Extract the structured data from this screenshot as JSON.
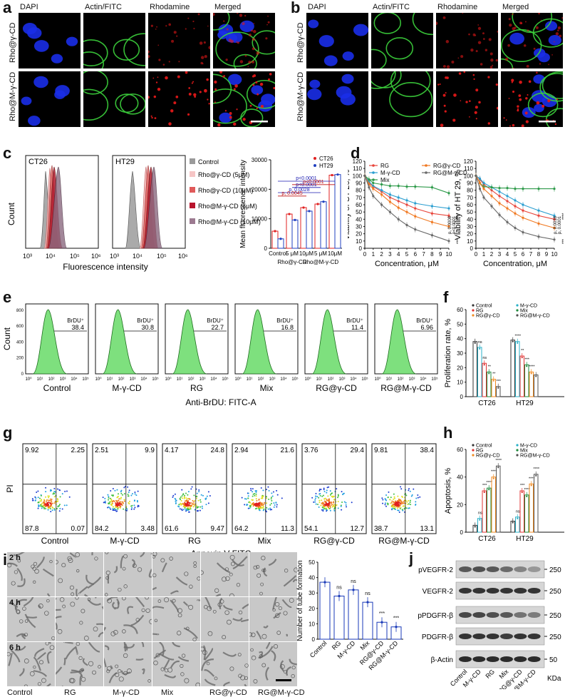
{
  "panels": {
    "a": "a",
    "b": "b",
    "c": "c",
    "d": "d",
    "e": "e",
    "f": "f",
    "g": "g",
    "h": "h",
    "i": "i",
    "j": "j"
  },
  "microscopy": {
    "channels": [
      "DAPI",
      "Actin/FITC",
      "Rhodamine",
      "Merged"
    ],
    "rows": [
      "Rho@γ-CD",
      "Rho@M-γ-CD"
    ]
  },
  "panel_c": {
    "hist_labels": [
      "CT26",
      "HT29"
    ],
    "hist_ylabel": "Count",
    "hist_xlabel": "Fluorescence intensity",
    "hist_ticks": [
      "10³",
      "10⁴",
      "10⁵",
      "10⁶"
    ],
    "legend": [
      "Control",
      "Rho@γ-CD (5μM)",
      "Rho@γ-CD (10μM)",
      "Rho@M-γ-CD (5μM)",
      "Rho@M-γ-CD (10μM)"
    ],
    "legend_colors": [
      "#9a9a9a",
      "#f6c6c6",
      "#e05a5a",
      "#b8142c",
      "#9c7a90"
    ]
  },
  "chart_data": [
    {
      "type": "bar",
      "panel": "c",
      "ylabel": "Mean fluorescence intensity",
      "categories": [
        "Control",
        "5 μM",
        "10μM",
        "5 μM",
        "10μM"
      ],
      "groups": [
        "Rho@γ-CD",
        "Rho@M-γ-CD"
      ],
      "series": [
        {
          "name": "CT26",
          "values": [
            5800,
            11600,
            13800,
            15000,
            24800
          ]
        },
        {
          "name": "HT29",
          "values": [
            3200,
            9600,
            12600,
            15800,
            25000
          ]
        }
      ],
      "yticks": [
        "0",
        "10000",
        "20000",
        "30000"
      ],
      "ylim": [
        0,
        30000
      ],
      "annotations": [
        "p<0.0001",
        "p<0.0001",
        "p<0.0001",
        "p, 0.0028",
        "p, 0.0045",
        "****",
        "****",
        "**",
        "**"
      ]
    },
    {
      "type": "line",
      "panel": "d",
      "ylabel": "Viability of CT 26, %",
      "xlabel": "Concentration, μM",
      "x": [
        0,
        0.5,
        1,
        2,
        3,
        4,
        5,
        6,
        8,
        10
      ],
      "xticks": [
        "0",
        "1",
        "2",
        "3",
        "4",
        "5",
        "6",
        "7",
        "8",
        "9",
        "10"
      ],
      "yticks": [
        "0",
        "10",
        "20",
        "30",
        "40",
        "50",
        "60",
        "70",
        "80",
        "90",
        "100",
        "110",
        "120"
      ],
      "ylim": [
        0,
        120
      ],
      "series": [
        {
          "name": "RG",
          "values": [
            100,
            90,
            85,
            78,
            70,
            65,
            60,
            55,
            48,
            45
          ]
        },
        {
          "name": "M-γ-CD",
          "values": [
            100,
            92,
            86,
            80,
            74,
            70,
            66,
            62,
            58,
            55
          ]
        },
        {
          "name": "Mix",
          "values": [
            100,
            95,
            90,
            88,
            86,
            86,
            85,
            85,
            84,
            76
          ]
        },
        {
          "name": "RG@γ-CD",
          "values": [
            100,
            88,
            82,
            74,
            64,
            56,
            50,
            44,
            36,
            30
          ]
        },
        {
          "name": "RG@M-γ-CD",
          "values": [
            100,
            84,
            72,
            60,
            50,
            40,
            32,
            26,
            18,
            10
          ]
        }
      ],
      "annotations": [
        "p, 0.0008",
        "p<0.0001",
        "****",
        "***"
      ]
    },
    {
      "type": "line",
      "panel": "d",
      "ylabel": "Viability of HT 29, %",
      "xlabel": "Concentration, μM",
      "x": [
        0,
        0.5,
        1,
        2,
        3,
        4,
        5,
        6,
        8,
        10
      ],
      "xticks": [
        "0",
        "1",
        "2",
        "3",
        "4",
        "5",
        "6",
        "7",
        "8",
        "9",
        "10"
      ],
      "yticks": [
        "0",
        "10",
        "20",
        "30",
        "40",
        "50",
        "60",
        "70",
        "80",
        "90",
        "100",
        "110",
        "120"
      ],
      "ylim": [
        0,
        120
      ],
      "series": [
        {
          "name": "RG",
          "values": [
            100,
            95,
            88,
            80,
            72,
            65,
            58,
            52,
            45,
            40
          ]
        },
        {
          "name": "M-γ-CD",
          "values": [
            100,
            96,
            90,
            84,
            78,
            72,
            66,
            60,
            52,
            45
          ]
        },
        {
          "name": "Mix",
          "values": [
            100,
            90,
            85,
            84,
            83,
            83,
            82,
            82,
            82,
            82
          ]
        },
        {
          "name": "RG@γ-CD",
          "values": [
            100,
            90,
            82,
            72,
            62,
            55,
            48,
            42,
            34,
            28
          ]
        },
        {
          "name": "RG@M-γ-CD",
          "values": [
            100,
            82,
            70,
            58,
            46,
            36,
            28,
            22,
            16,
            12
          ]
        }
      ],
      "annotations": [
        "p, 0.0018",
        "p, 0.0001",
        "****",
        "***"
      ]
    },
    {
      "type": "bar",
      "panel": "f",
      "ylabel": "Proliferation rate, %",
      "categories": [
        "CT26",
        "HT29"
      ],
      "series": [
        {
          "name": "Control",
          "values": [
            38,
            39
          ]
        },
        {
          "name": "M-γ-CD",
          "values": [
            34,
            38
          ]
        },
        {
          "name": "RG",
          "values": [
            23,
            28
          ]
        },
        {
          "name": "Mix",
          "values": [
            17,
            22
          ]
        },
        {
          "name": "RG@γ-CD",
          "values": [
            12,
            17
          ]
        },
        {
          "name": "RG@M-γ-CD",
          "values": [
            7,
            15
          ]
        }
      ],
      "yticks": [
        "0",
        "10",
        "20",
        "30",
        "40",
        "50",
        "60"
      ],
      "ylim": [
        0,
        60
      ],
      "annotations": [
        "ns",
        "ns",
        "**",
        "**",
        "***",
        "****",
        "**",
        "***",
        "****"
      ]
    },
    {
      "type": "bar",
      "panel": "h",
      "ylabel": "Apoptosis, %",
      "categories": [
        "CT26",
        "HT29"
      ],
      "series": [
        {
          "name": "Control",
          "values": [
            5,
            8
          ]
        },
        {
          "name": "M-γ-CD",
          "values": [
            10,
            11
          ]
        },
        {
          "name": "RG",
          "values": [
            30,
            30
          ]
        },
        {
          "name": "Mix",
          "values": [
            32,
            27
          ]
        },
        {
          "name": "RG@γ-CD",
          "values": [
            40,
            35
          ]
        },
        {
          "name": "RG@M-γ-CD",
          "values": [
            48,
            42
          ]
        }
      ],
      "yticks": [
        "0",
        "20",
        "40",
        "60"
      ],
      "ylim": [
        0,
        60
      ],
      "annotations": [
        "ns",
        "***",
        "****",
        "****",
        "****",
        "ns",
        "***",
        "****",
        "****",
        "****"
      ]
    },
    {
      "type": "bar",
      "panel": "i",
      "ylabel": "Number of tube formation",
      "categories": [
        "Control",
        "RG",
        "M-γ-CD",
        "Mix",
        "RG@γ-CD",
        "RG@M-γ-CD"
      ],
      "values": [
        37,
        28,
        32,
        24,
        11,
        8
      ],
      "yticks": [
        "0",
        "10",
        "20",
        "30",
        "40",
        "50"
      ],
      "ylim": [
        0,
        50
      ],
      "annotations": [
        "ns",
        "ns",
        "ns",
        "***",
        "***"
      ]
    }
  ],
  "panel_c_series_colors": [
    "#e02020",
    "#2040c0"
  ],
  "series_colors_d": [
    "#e8463c",
    "#2a9ed0",
    "#2e9a4a",
    "#f07820",
    "#6a6a6a"
  ],
  "series_colors_fh": [
    "#333333",
    "#2ab0c8",
    "#e03030",
    "#1e8a3c",
    "#f08a20",
    "#505050"
  ],
  "panel_e": {
    "samples": [
      "Control",
      "M-γ-CD",
      "RG",
      "Mix",
      "RG@γ-CD",
      "RG@M-γ-CD"
    ],
    "values": [
      "38.4",
      "30.8",
      "22.7",
      "16.8",
      "11.4",
      "6.96"
    ],
    "gate": "BrDU⁺",
    "ylabel": "Count",
    "xlabel": "Anti-BrDU: FITC-A",
    "xticks": [
      "10⁰",
      "10¹",
      "10²",
      "10³",
      "10⁴",
      "10⁵"
    ],
    "yticks": [
      "0",
      "200",
      "400",
      "600",
      "800"
    ]
  },
  "panel_g": {
    "samples": [
      "Control",
      "M-γ-CD",
      "RG",
      "Mix",
      "RG@γ-CD",
      "RG@M-γ-CD"
    ],
    "quadrants": [
      [
        "9.92",
        "2.25",
        "87.8",
        "0.07"
      ],
      [
        "2.51",
        "9.9",
        "84.2",
        "3.48"
      ],
      [
        "4.17",
        "24.8",
        "61.6",
        "9.47"
      ],
      [
        "2.94",
        "21.6",
        "64.2",
        "11.3"
      ],
      [
        "3.76",
        "29.4",
        "54.1",
        "12.7"
      ],
      [
        "9.81",
        "38.4",
        "38.7",
        "13.1"
      ]
    ],
    "ylabel": "PI",
    "xlabel": "Annexin V FITC"
  },
  "panel_i": {
    "rows": [
      "2 h",
      "4 h",
      "6 h"
    ],
    "cols": [
      "Control",
      "RG",
      "M-γ-CD",
      "Mix",
      "RG@γ-CD",
      "RG@M-γ-CD"
    ]
  },
  "panel_j": {
    "bands": [
      "pVEGFR-2",
      "VEGFR-2",
      "pPDGFR-β",
      "PDGFR-β",
      "β-Actin"
    ],
    "mw": [
      "250",
      "250",
      "250",
      "250",
      "50"
    ],
    "unit": "KDa",
    "lanes": [
      "Control",
      "M-γ-CD",
      "RG",
      "Mix",
      "RG@γ-CD",
      "RG@M-γ-CD"
    ]
  }
}
